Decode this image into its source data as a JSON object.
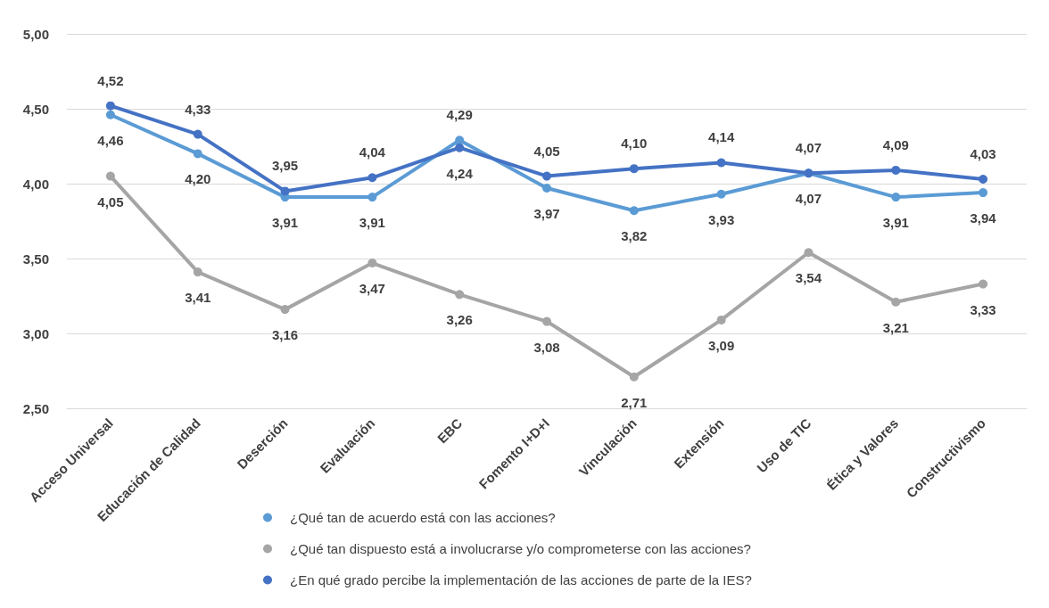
{
  "chart_data": {
    "type": "line",
    "categories": [
      "Acceso Universal",
      "Educación de Calidad",
      "Deserción",
      "Evaluación",
      "EBC",
      "Fomento I+D+I",
      "Vinculación",
      "Extensión",
      "Uso de TIC",
      "Ética y Valores",
      "Constructivismo"
    ],
    "series": [
      {
        "name": "¿Qué tan de acuerdo está con las acciones?",
        "color": "#5b9bd5",
        "values": [
          4.46,
          4.2,
          3.91,
          3.91,
          4.29,
          3.97,
          3.82,
          3.93,
          4.07,
          3.91,
          3.94
        ],
        "value_labels": [
          "4,46",
          "4,20",
          "3,91",
          "3,91",
          "4,29",
          "3,97",
          "3,82",
          "3,93",
          "4,07",
          "3,91",
          "3,94"
        ]
      },
      {
        "name": "¿Qué tan dispuesto está a involucrarse y/o comprometerse con las acciones?",
        "color": "#a5a5a5",
        "values": [
          4.05,
          3.41,
          3.16,
          3.47,
          3.26,
          3.08,
          2.71,
          3.09,
          3.54,
          3.21,
          3.33
        ],
        "value_labels": [
          "4,05",
          "3,41",
          "3,16",
          "3,47",
          "3,26",
          "3,08",
          "2,71",
          "3,09",
          "3,54",
          "3,21",
          "3,33"
        ]
      },
      {
        "name": "¿En qué grado percibe la implementación de las acciones de parte de la IES?",
        "color": "#4472c4",
        "values": [
          4.52,
          4.33,
          3.95,
          4.04,
          4.24,
          4.05,
          4.1,
          4.14,
          4.07,
          4.09,
          4.03
        ],
        "value_labels": [
          "4,52",
          "4,33",
          "3,95",
          "4,04",
          "4,24",
          "4,05",
          "4,10",
          "4,14",
          "4,07",
          "4,09",
          "4,03"
        ]
      }
    ],
    "ylim": [
      2.5,
      5
    ],
    "yticks": [
      {
        "value": 2.5,
        "label": "2,50"
      },
      {
        "value": 3,
        "label": "3,00"
      },
      {
        "value": 3.5,
        "label": "3,50"
      },
      {
        "value": 4,
        "label": "4,00"
      },
      {
        "value": 4.5,
        "label": "4,50"
      },
      {
        "value": 5,
        "label": "5,00"
      }
    ],
    "grid": "y",
    "legend": "bottom",
    "marker": "circle",
    "line_style": "solid"
  }
}
